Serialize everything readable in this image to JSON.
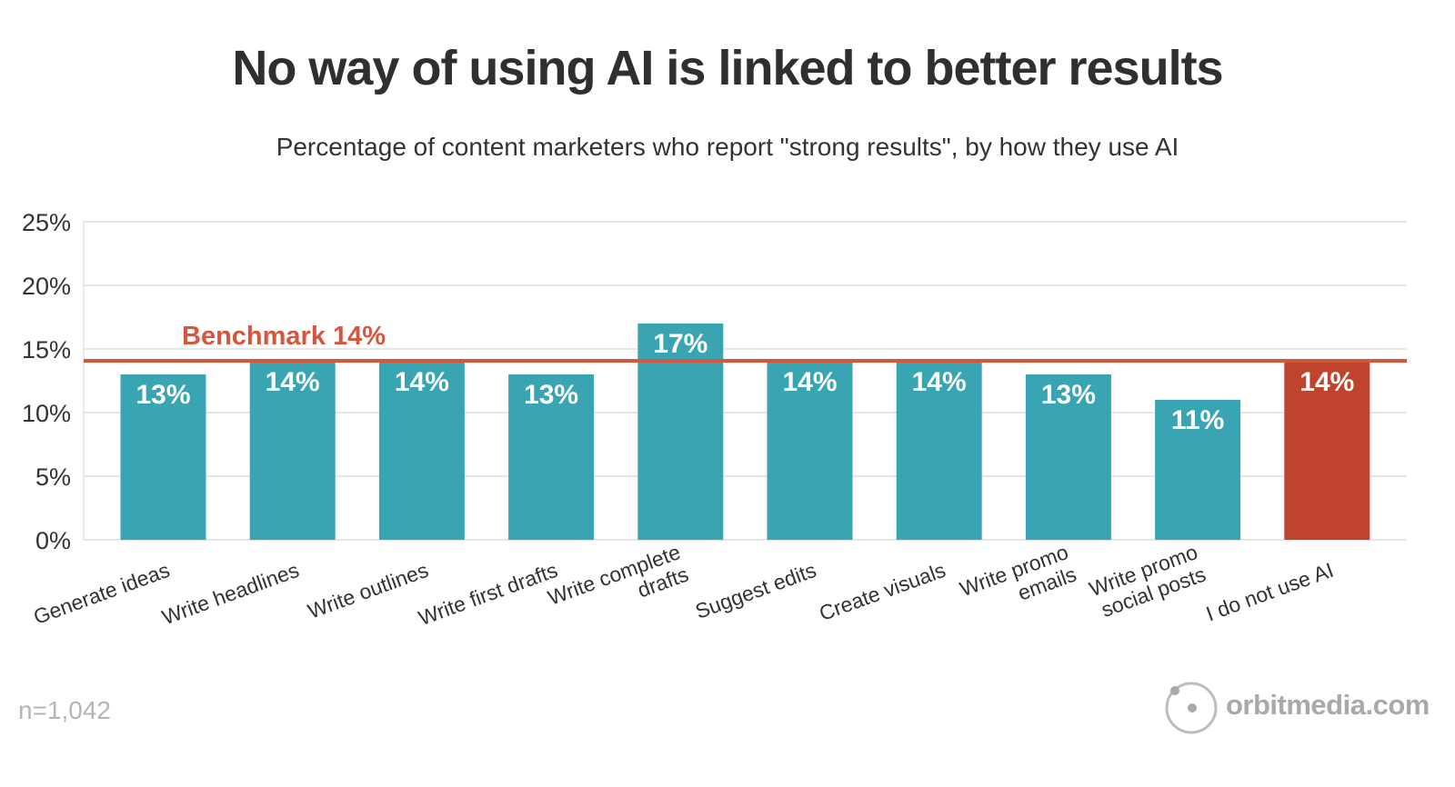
{
  "chart_data": {
    "type": "bar",
    "title": "No way of using AI is linked to better results",
    "subtitle": "Percentage of content marketers who report \"strong results\", by how they use AI",
    "categories": [
      "Generate ideas",
      "Write headlines",
      "Write outlines",
      "Write first drafts",
      "Write complete drafts",
      "Suggest edits",
      "Create visuals",
      "Write promo emails",
      "Write promo social posts",
      "I do not use AI"
    ],
    "category_lines": [
      [
        "Generate ideas"
      ],
      [
        "Write headlines"
      ],
      [
        "Write outlines"
      ],
      [
        "Write first drafts"
      ],
      [
        "Write complete",
        "drafts"
      ],
      [
        "Suggest edits"
      ],
      [
        "Create visuals"
      ],
      [
        "Write promo",
        "emails"
      ],
      [
        "Write promo",
        "social posts"
      ],
      [
        "I do not use AI"
      ]
    ],
    "values": [
      13,
      14,
      14,
      13,
      17,
      14,
      14,
      13,
      11,
      14
    ],
    "data_labels": [
      "13%",
      "14%",
      "14%",
      "13%",
      "17%",
      "14%",
      "14%",
      "13%",
      "11%",
      "14%"
    ],
    "bar_colors": [
      "#3aa5b2",
      "#3aa5b2",
      "#3aa5b2",
      "#3aa5b2",
      "#3aa5b2",
      "#3aa5b2",
      "#3aa5b2",
      "#3aa5b2",
      "#3aa5b2",
      "#bf432d"
    ],
    "ylim": [
      0,
      25
    ],
    "yticks": [
      0,
      5,
      10,
      15,
      20,
      25
    ],
    "ytick_labels": [
      "0%",
      "5%",
      "10%",
      "15%",
      "20%",
      "25%"
    ],
    "xlabel": "",
    "ylabel": "",
    "grid": true,
    "benchmark": {
      "value": 14,
      "label": "Benchmark 14%",
      "color": "#d6553d"
    },
    "bar_color": "#3aa5b2",
    "highlight_color": "#bf432d"
  },
  "footer": {
    "sample_size": "n=1,042",
    "brand": "orbitmedia.com",
    "brand_icon": "orbit-logo-icon"
  }
}
